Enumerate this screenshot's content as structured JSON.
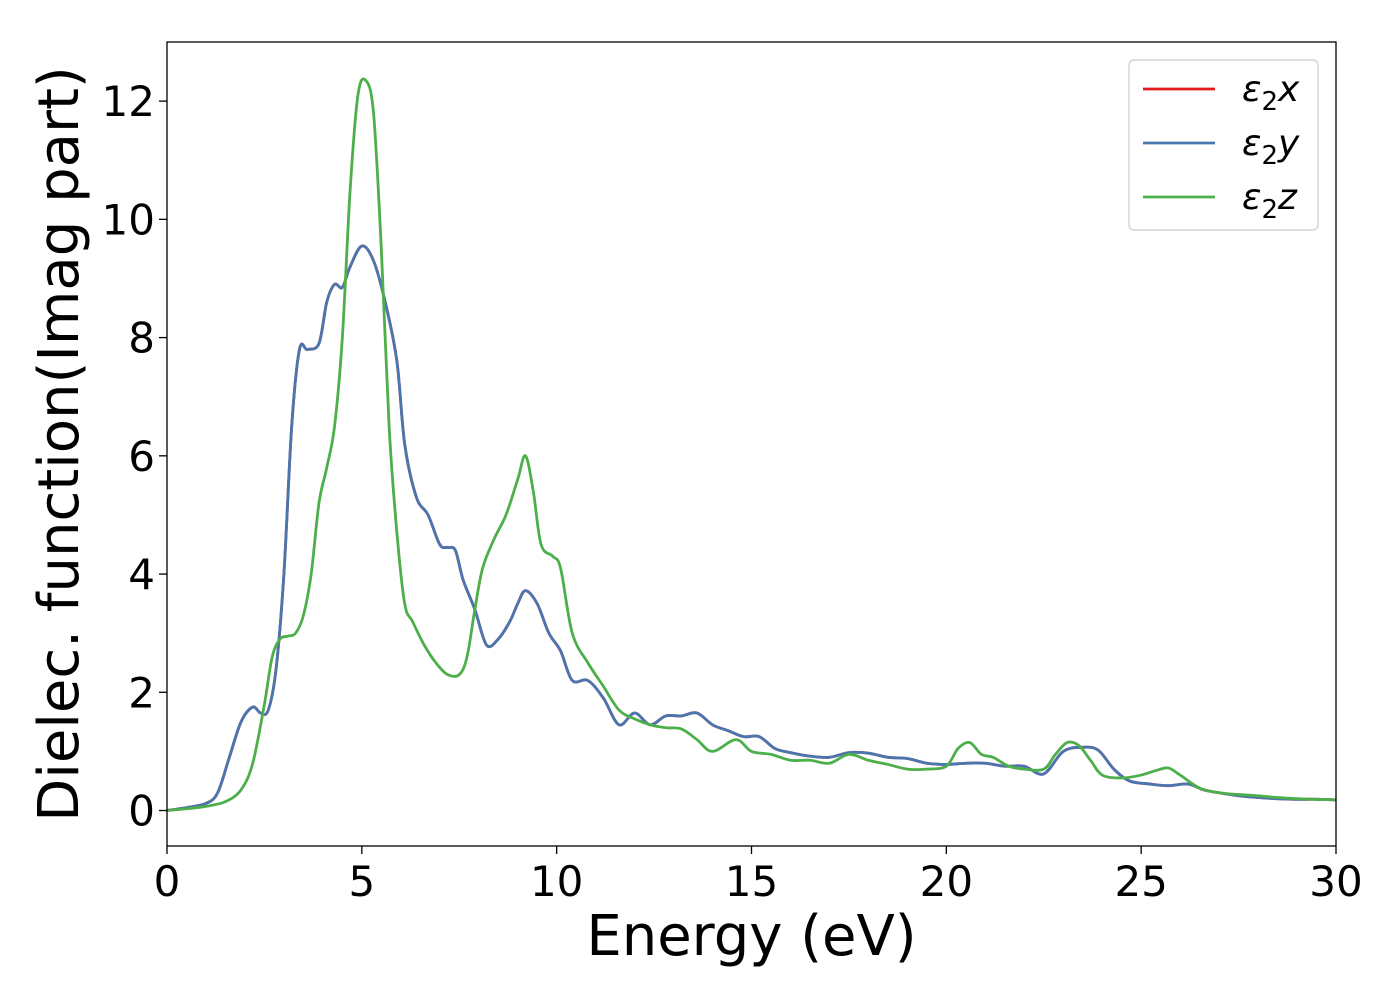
{
  "chart_data": {
    "type": "line",
    "xlabel": "Energy (eV)",
    "ylabel": "Dielec. function(Imag part)",
    "xlim": [
      0,
      30
    ],
    "ylim": [
      -0.6,
      13.0
    ],
    "xticks": [
      0,
      5,
      10,
      15,
      20,
      25,
      30
    ],
    "yticks": [
      0,
      2,
      4,
      6,
      8,
      10,
      12
    ],
    "grid": false,
    "legend_position": "top-right",
    "series": [
      {
        "name": "ε₂x",
        "legend_base": "ε",
        "legend_sub": "2",
        "legend_suffix": "x",
        "color": "#e41a1c",
        "x": [
          0,
          0.5,
          1.0,
          1.3,
          1.6,
          1.9,
          2.2,
          2.4,
          2.6,
          2.8,
          3.0,
          3.2,
          3.4,
          3.6,
          3.9,
          4.1,
          4.3,
          4.5,
          4.7,
          5.0,
          5.3,
          5.6,
          5.9,
          6.1,
          6.4,
          6.7,
          7.0,
          7.2,
          7.4,
          7.6,
          7.9,
          8.2,
          8.5,
          8.8,
          9.0,
          9.2,
          9.5,
          9.8,
          10.1,
          10.4,
          10.8,
          11.2,
          11.6,
          12.0,
          12.4,
          12.8,
          13.2,
          13.6,
          14.0,
          14.4,
          14.8,
          15.2,
          15.6,
          16.0,
          16.5,
          17.0,
          17.5,
          18.0,
          18.5,
          19.0,
          19.5,
          20.0,
          20.5,
          21.0,
          21.5,
          22.0,
          22.5,
          23.0,
          23.5,
          23.9,
          24.3,
          24.7,
          25.2,
          25.7,
          26.2,
          26.6,
          27.0,
          27.5,
          28.0,
          28.5,
          29.0,
          29.5,
          30.0
        ],
        "y": [
          0.0,
          0.05,
          0.12,
          0.3,
          0.9,
          1.5,
          1.75,
          1.65,
          1.7,
          2.4,
          4.0,
          6.5,
          7.8,
          7.8,
          7.9,
          8.6,
          8.9,
          8.85,
          9.2,
          9.55,
          9.3,
          8.6,
          7.6,
          6.2,
          5.3,
          5.0,
          4.5,
          4.45,
          4.4,
          3.9,
          3.4,
          2.8,
          2.9,
          3.2,
          3.5,
          3.72,
          3.5,
          3.0,
          2.7,
          2.2,
          2.2,
          1.9,
          1.45,
          1.65,
          1.45,
          1.6,
          1.6,
          1.65,
          1.45,
          1.35,
          1.25,
          1.25,
          1.05,
          0.98,
          0.92,
          0.9,
          0.98,
          0.97,
          0.9,
          0.88,
          0.8,
          0.78,
          0.8,
          0.8,
          0.75,
          0.75,
          0.62,
          1.0,
          1.07,
          1.02,
          0.7,
          0.5,
          0.45,
          0.42,
          0.45,
          0.35,
          0.3,
          0.25,
          0.22,
          0.2,
          0.19,
          0.19,
          0.18
        ]
      },
      {
        "name": "ε₂y",
        "legend_base": "ε",
        "legend_sub": "2",
        "legend_suffix": "y",
        "color": "#4a76b0",
        "x": [
          0,
          0.5,
          1.0,
          1.3,
          1.6,
          1.9,
          2.2,
          2.4,
          2.6,
          2.8,
          3.0,
          3.2,
          3.4,
          3.6,
          3.9,
          4.1,
          4.3,
          4.5,
          4.7,
          5.0,
          5.3,
          5.6,
          5.9,
          6.1,
          6.4,
          6.7,
          7.0,
          7.2,
          7.4,
          7.6,
          7.9,
          8.2,
          8.5,
          8.8,
          9.0,
          9.2,
          9.5,
          9.8,
          10.1,
          10.4,
          10.8,
          11.2,
          11.6,
          12.0,
          12.4,
          12.8,
          13.2,
          13.6,
          14.0,
          14.4,
          14.8,
          15.2,
          15.6,
          16.0,
          16.5,
          17.0,
          17.5,
          18.0,
          18.5,
          19.0,
          19.5,
          20.0,
          20.5,
          21.0,
          21.5,
          22.0,
          22.5,
          23.0,
          23.5,
          23.9,
          24.3,
          24.7,
          25.2,
          25.7,
          26.2,
          26.6,
          27.0,
          27.5,
          28.0,
          28.5,
          29.0,
          29.5,
          30.0
        ],
        "y": [
          0.0,
          0.05,
          0.12,
          0.3,
          0.9,
          1.5,
          1.75,
          1.65,
          1.7,
          2.4,
          4.0,
          6.5,
          7.8,
          7.8,
          7.9,
          8.6,
          8.9,
          8.85,
          9.2,
          9.55,
          9.3,
          8.6,
          7.6,
          6.2,
          5.3,
          5.0,
          4.5,
          4.45,
          4.4,
          3.9,
          3.4,
          2.8,
          2.9,
          3.2,
          3.5,
          3.72,
          3.5,
          3.0,
          2.7,
          2.2,
          2.2,
          1.9,
          1.45,
          1.65,
          1.45,
          1.6,
          1.6,
          1.65,
          1.45,
          1.35,
          1.25,
          1.25,
          1.05,
          0.98,
          0.92,
          0.9,
          0.98,
          0.97,
          0.9,
          0.88,
          0.8,
          0.78,
          0.8,
          0.8,
          0.75,
          0.75,
          0.62,
          1.0,
          1.07,
          1.02,
          0.7,
          0.5,
          0.45,
          0.42,
          0.45,
          0.35,
          0.3,
          0.25,
          0.22,
          0.2,
          0.19,
          0.19,
          0.18
        ]
      },
      {
        "name": "ε₂z",
        "legend_base": "ε",
        "legend_sub": "2",
        "legend_suffix": "z",
        "color": "#4daf4a",
        "x": [
          0,
          0.5,
          1.0,
          1.5,
          1.9,
          2.2,
          2.5,
          2.7,
          2.9,
          3.1,
          3.3,
          3.5,
          3.7,
          3.9,
          4.1,
          4.3,
          4.5,
          4.7,
          4.9,
          5.1,
          5.3,
          5.5,
          5.7,
          5.9,
          6.1,
          6.3,
          6.6,
          6.9,
          7.2,
          7.5,
          7.7,
          7.9,
          8.1,
          8.4,
          8.7,
          9.0,
          9.2,
          9.4,
          9.6,
          9.9,
          10.1,
          10.4,
          10.8,
          11.2,
          11.6,
          12.0,
          12.4,
          12.8,
          13.2,
          13.6,
          14.0,
          14.6,
          15.0,
          15.5,
          16.0,
          16.5,
          17.0,
          17.5,
          18.0,
          18.5,
          19.0,
          19.5,
          20.0,
          20.3,
          20.6,
          20.9,
          21.2,
          21.6,
          22.0,
          22.5,
          22.8,
          23.1,
          23.4,
          23.7,
          24.0,
          24.5,
          25.0,
          25.4,
          25.7,
          26.0,
          26.5,
          27.0,
          27.5,
          28.0,
          28.5,
          29.0,
          29.5,
          30.0
        ],
        "y": [
          0.0,
          0.03,
          0.07,
          0.15,
          0.35,
          0.8,
          1.8,
          2.6,
          2.9,
          2.95,
          3.0,
          3.3,
          4.0,
          5.2,
          5.8,
          6.5,
          8.0,
          10.5,
          12.1,
          12.35,
          11.8,
          9.5,
          6.5,
          4.7,
          3.5,
          3.2,
          2.8,
          2.5,
          2.3,
          2.3,
          2.6,
          3.4,
          4.1,
          4.6,
          5.0,
          5.6,
          6.0,
          5.4,
          4.5,
          4.3,
          4.1,
          3.0,
          2.5,
          2.1,
          1.7,
          1.55,
          1.45,
          1.4,
          1.38,
          1.2,
          1.0,
          1.2,
          1.0,
          0.95,
          0.85,
          0.85,
          0.8,
          0.95,
          0.85,
          0.78,
          0.7,
          0.7,
          0.75,
          1.05,
          1.15,
          0.95,
          0.9,
          0.75,
          0.7,
          0.7,
          0.95,
          1.15,
          1.1,
          0.85,
          0.6,
          0.55,
          0.6,
          0.68,
          0.72,
          0.6,
          0.38,
          0.3,
          0.27,
          0.25,
          0.22,
          0.2,
          0.19,
          0.18
        ]
      }
    ]
  }
}
